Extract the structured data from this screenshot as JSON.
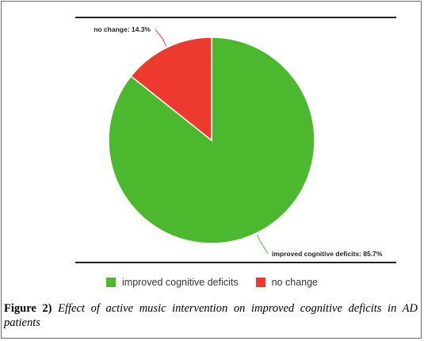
{
  "chart_data": {
    "type": "pie",
    "slices": [
      {
        "label": "improved cognitive deficits",
        "value": 85.7,
        "color": "#4cb82e",
        "callout": "improved cognitive deficits: 85.7%"
      },
      {
        "label": "no change",
        "value": 14.3,
        "color": "#ee3a2e",
        "callout": "no change: 14.3%"
      }
    ],
    "legend": {
      "placement": "bottom",
      "entries": [
        "improved cognitive deficits",
        "no change"
      ]
    }
  },
  "caption": {
    "label": "Figure 2)",
    "text": "Effect of active music intervention on improved cognitive deficits in AD patients"
  }
}
